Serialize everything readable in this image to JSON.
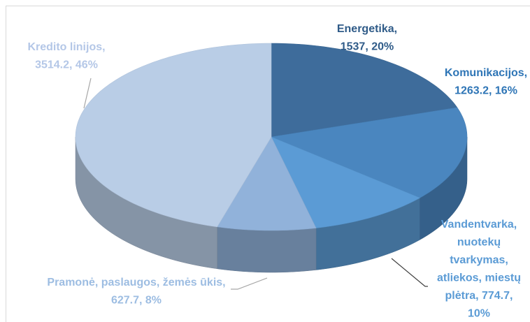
{
  "chart_data": {
    "type": "pie3d",
    "values": [
      1537,
      1263.2,
      774.7,
      627.7,
      3514.2
    ],
    "labels": [
      [
        "Energetika,",
        "1537, 20%"
      ],
      [
        "Komunikacijos,",
        "1263.2, 16%"
      ],
      [
        "Vandentvarka,",
        "nuotekų",
        "tvarkymas,",
        "atliekos, miestų",
        "plėtra, 774.7,",
        "10%"
      ],
      [
        "Pramonė, paslaugos, žemės ūkis,",
        "627.7, 8%"
      ],
      [
        "Kredito linijos,",
        "3514.2, 46%"
      ]
    ],
    "colors": [
      "#3e6c9b",
      "#4a86bf",
      "#5b9bd5",
      "#91b2da",
      "#b9cde6"
    ],
    "label_colors": [
      "#2f5b88",
      "#2e75b6",
      "#5b9bd5",
      "#9dbde2",
      "#b4c7e7"
    ]
  }
}
